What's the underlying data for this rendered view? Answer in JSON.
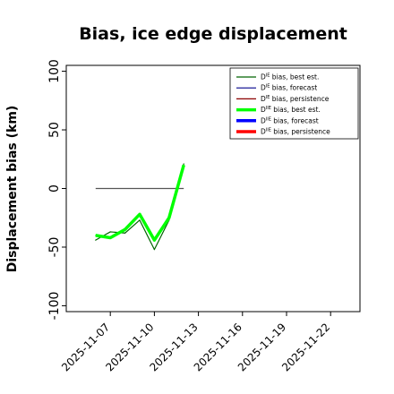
{
  "chart_data": {
    "type": "line",
    "title": "Bias, ice edge displacement",
    "ylabel": "Displacement bias (km)",
    "xlabel": "",
    "ylim": [
      -105,
      105
    ],
    "xlim": [
      "2025-11-04",
      "2025-11-24"
    ],
    "yticks": [
      -100,
      -50,
      0,
      50,
      100
    ],
    "xticks": [
      {
        "date": "2025-11-07",
        "label": "2025-11-07",
        "color": "#000000"
      },
      {
        "date": "2025-11-10",
        "label": "2025-11-10",
        "color": "#000000"
      },
      {
        "date": "2025-11-13",
        "label": "2025-11-13",
        "color": "#1e7a1e"
      },
      {
        "date": "2025-11-16",
        "label": "2025-11-16",
        "color": "#000000"
      },
      {
        "date": "2025-11-19",
        "label": "2025-11-19",
        "color": "#000000"
      },
      {
        "date": "2025-11-22",
        "label": "2025-11-22",
        "color": "#000000"
      }
    ],
    "grid": false,
    "legend_position": "top-right",
    "series": [
      {
        "key": "de_best",
        "name": "D^IE bias, best est.",
        "base": "D",
        "sup": "IE",
        "rest": " bias, best est.",
        "color": "#006400",
        "width": 1.2,
        "x": [
          "2025-11-06",
          "2025-11-07",
          "2025-11-08",
          "2025-11-09",
          "2025-11-10",
          "2025-11-11",
          "2025-11-12"
        ],
        "y": [
          -44,
          -37,
          -38,
          -27,
          -52,
          -27,
          21
        ]
      },
      {
        "key": "de_fc",
        "name": "D^IE bias, forecast",
        "base": "D",
        "sup": "IE",
        "rest": " bias, forecast",
        "color": "#00008b",
        "width": 1.2,
        "x": [],
        "y": []
      },
      {
        "key": "de_pers",
        "name": "D^IE bias, persistence",
        "base": "D",
        "sup": "IE",
        "rest": " bias, persistence",
        "color": "#8b0000",
        "width": 1.2,
        "x": [],
        "y": []
      },
      {
        "key": "dii_best",
        "name": "D^IIE bias, best est.",
        "base": "D",
        "sup": "IIE",
        "rest": " bias, best est.",
        "color": "#00ff00",
        "width": 3.5,
        "x": [
          "2025-11-06",
          "2025-11-07",
          "2025-11-08",
          "2025-11-09",
          "2025-11-10",
          "2025-11-11",
          "2025-11-12"
        ],
        "y": [
          -40,
          -42,
          -35,
          -22,
          -44,
          -25,
          20
        ]
      },
      {
        "key": "dii_fc",
        "name": "D^IIE bias, forecast",
        "base": "D",
        "sup": "IIE",
        "rest": " bias, forecast",
        "color": "#0000ff",
        "width": 3.5,
        "x": [],
        "y": []
      },
      {
        "key": "dii_pers",
        "name": "D^IIE bias, persistence",
        "base": "D",
        "sup": "IIE",
        "rest": " bias, persistence",
        "color": "#ff0000",
        "width": 3.5,
        "x": [],
        "y": []
      }
    ],
    "reference_lines": [
      {
        "color": "#555555",
        "width": 1.2,
        "x": [
          "2025-11-06",
          "2025-11-12"
        ],
        "y": [
          0,
          0
        ]
      }
    ]
  }
}
